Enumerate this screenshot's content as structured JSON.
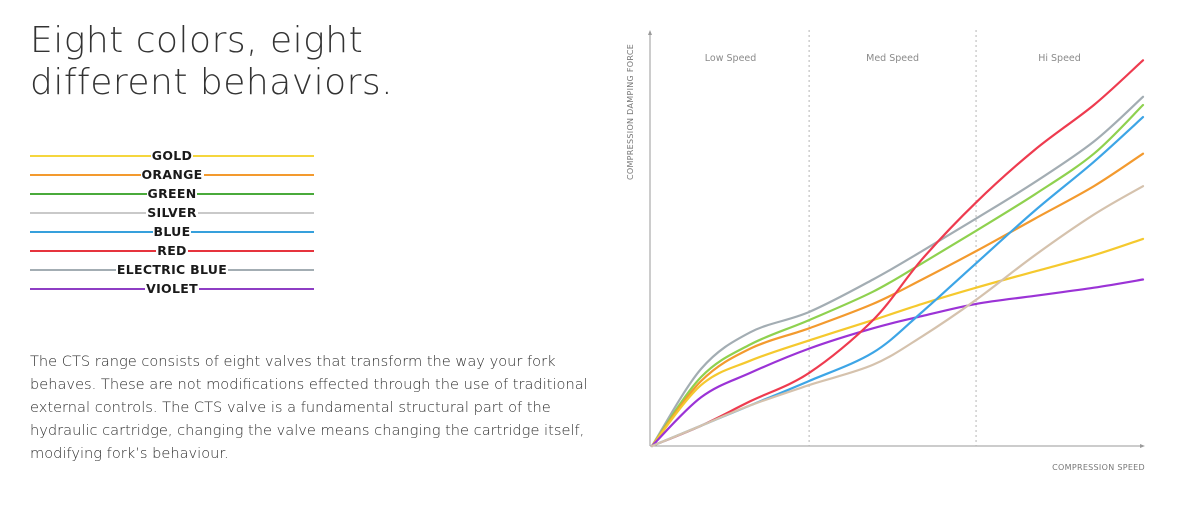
{
  "heading": "Eight colors, eight different behaviors.",
  "legend": [
    {
      "label": "GOLD",
      "color": "#f5d63d"
    },
    {
      "label": "ORANGE",
      "color": "#f39a2e"
    },
    {
      "label": "GREEN",
      "color": "#4aaa3b"
    },
    {
      "label": "SILVER",
      "color": "#c9c9c9"
    },
    {
      "label": "BLUE",
      "color": "#36a0dc"
    },
    {
      "label": "RED",
      "color": "#e6343d"
    },
    {
      "label": "ELECTRIC BLUE",
      "color": "#a3adb3"
    },
    {
      "label": "VIOLET",
      "color": "#8e3ec4"
    }
  ],
  "description": "The CTS range consists of eight valves that transform the way your fork behaves. These are not modifications effected through the use of traditional external controls. The CTS valve is a fundamental structural part of the hydraulic cartridge, changing the valve means changing the cartridge itself, modifying fork’s behaviour.",
  "chart_data": {
    "type": "line",
    "xlabel": "COMPRESSION SPEED",
    "ylabel": "COMPRESSION DAMPING FORCE",
    "xlim": [
      0,
      100
    ],
    "ylim": [
      0,
      100
    ],
    "ticks_shown": false,
    "grid": false,
    "regions": [
      {
        "label": "Low Speed",
        "from": 0,
        "to": 32
      },
      {
        "label": "Med Speed",
        "from": 32,
        "to": 66
      },
      {
        "label": "Hi Speed",
        "from": 66,
        "to": 100
      }
    ],
    "x": [
      0,
      10,
      20,
      32,
      45,
      55,
      66,
      78,
      90,
      100
    ],
    "series": [
      {
        "name": "ELECTRIC BLUE",
        "color": "#a3adb3",
        "values": [
          0,
          19,
          28,
          33,
          41,
          48,
          56,
          65,
          75,
          86
        ]
      },
      {
        "name": "GREEN",
        "color": "#8fd14f",
        "values": [
          0,
          17,
          25,
          31,
          38,
          45,
          53,
          62,
          72,
          84
        ]
      },
      {
        "name": "ORANGE",
        "color": "#f39a2e",
        "values": [
          0,
          16,
          24,
          29,
          35,
          41,
          48,
          56,
          64,
          72
        ]
      },
      {
        "name": "GOLD",
        "color": "#f5c92e",
        "values": [
          0,
          15,
          21,
          26,
          31,
          35,
          39,
          43,
          47,
          51
        ]
      },
      {
        "name": "VIOLET",
        "color": "#9b33d6",
        "values": [
          0,
          12,
          18,
          24,
          29,
          32,
          35,
          37,
          39,
          41
        ]
      },
      {
        "name": "RED",
        "color": "#ee3b4f",
        "values": [
          0,
          5,
          11,
          18,
          31,
          46,
          60,
          73,
          84,
          95
        ]
      },
      {
        "name": "BLUE",
        "color": "#3da5e6",
        "values": [
          0,
          5,
          10,
          16,
          23,
          33,
          45,
          58,
          70,
          81
        ]
      },
      {
        "name": "SILVER",
        "color": "#d5c2ad",
        "values": [
          0,
          5,
          10,
          15,
          20,
          27,
          36,
          47,
          57,
          64
        ]
      }
    ]
  }
}
